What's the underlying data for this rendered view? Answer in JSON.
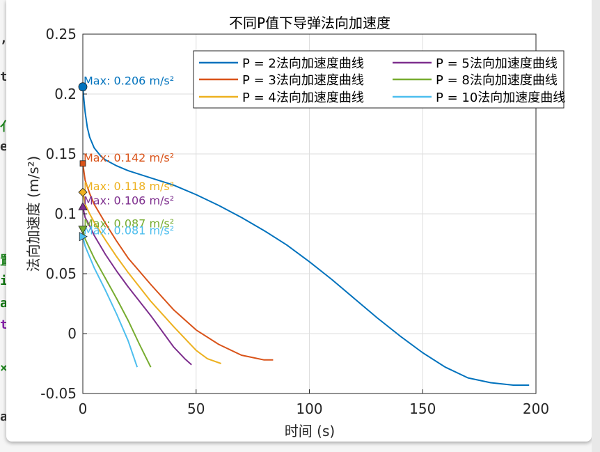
{
  "background_fragments": [
    ",",
    "t",
    "亻",
    "e",
    "置",
    "i",
    "a",
    "t",
    "×",
    "a"
  ],
  "chart_data": {
    "type": "line",
    "title": "不同P值下导弹法向加速度",
    "xlabel": "时间 (s)",
    "ylabel": "法向加速度 (m/s²)",
    "xlim": [
      0,
      200
    ],
    "ylim": [
      -0.05,
      0.25
    ],
    "x_ticks": [
      "0",
      "50",
      "100",
      "150",
      "200"
    ],
    "y_ticks": [
      "-0.05",
      "0",
      "0.05",
      "0.1",
      "0.15",
      "0.2",
      "0.25"
    ],
    "grid": true,
    "legend_position": "top-right",
    "legend_columns": 2,
    "series": [
      {
        "name": "P = 2法向加速度曲线",
        "color": "#0072BD",
        "marker": "circle",
        "max_label": "Max: 0.206 m/s²",
        "max_value": 0.206,
        "x": [
          0,
          0.5,
          1,
          2,
          3,
          5,
          8,
          10,
          15,
          20,
          30,
          40,
          50,
          60,
          70,
          80,
          90,
          100,
          110,
          120,
          130,
          140,
          150,
          160,
          170,
          180,
          190,
          197
        ],
        "y": [
          0.206,
          0.195,
          0.185,
          0.172,
          0.164,
          0.155,
          0.148,
          0.145,
          0.14,
          0.136,
          0.13,
          0.124,
          0.116,
          0.107,
          0.097,
          0.086,
          0.074,
          0.06,
          0.045,
          0.029,
          0.013,
          -0.002,
          -0.016,
          -0.028,
          -0.037,
          -0.041,
          -0.043,
          -0.043
        ]
      },
      {
        "name": "P = 3法向加速度曲线",
        "color": "#D95319",
        "marker": "square",
        "max_label": "Max: 0.142 m/s²",
        "max_value": 0.142,
        "x": [
          0,
          1,
          3,
          5,
          10,
          15,
          20,
          30,
          40,
          50,
          60,
          70,
          75,
          80,
          84
        ],
        "y": [
          0.142,
          0.128,
          0.117,
          0.108,
          0.092,
          0.077,
          0.063,
          0.041,
          0.02,
          0.003,
          -0.009,
          -0.018,
          -0.02,
          -0.022,
          -0.022
        ]
      },
      {
        "name": "P = 4法向加速度曲线",
        "color": "#EDB120",
        "marker": "diamond",
        "max_label": "Max: 0.118 m/s²",
        "max_value": 0.118,
        "x": [
          0,
          1,
          3,
          5,
          10,
          15,
          20,
          30,
          40,
          50,
          55,
          61
        ],
        "y": [
          0.118,
          0.108,
          0.1,
          0.093,
          0.078,
          0.064,
          0.051,
          0.027,
          0.006,
          -0.014,
          -0.021,
          -0.025
        ]
      },
      {
        "name": "P = 5法向加速度曲线",
        "color": "#7E2F8E",
        "marker": "triangle-up",
        "max_label": "Max: 0.106 m/s²",
        "max_value": 0.106,
        "x": [
          0,
          1,
          3,
          5,
          10,
          15,
          20,
          30,
          40,
          45,
          48
        ],
        "y": [
          0.106,
          0.097,
          0.09,
          0.082,
          0.066,
          0.052,
          0.039,
          0.015,
          -0.011,
          -0.021,
          -0.026
        ]
      },
      {
        "name": "P = 8法向加速度曲线",
        "color": "#77AC30",
        "marker": "triangle-down",
        "max_label": "Max: 0.087 m/s²",
        "max_value": 0.087,
        "x": [
          0,
          1,
          3,
          5,
          10,
          15,
          20,
          25,
          30
        ],
        "y": [
          0.087,
          0.079,
          0.071,
          0.063,
          0.046,
          0.029,
          0.011,
          -0.009,
          -0.028
        ]
      },
      {
        "name": "P = 10法向加速度曲线",
        "color": "#4DBEEE",
        "marker": "triangle-right",
        "max_label": "Max: 0.081 m/s²",
        "max_value": 0.081,
        "x": [
          0,
          1,
          3,
          5,
          10,
          15,
          20,
          24
        ],
        "y": [
          0.081,
          0.073,
          0.064,
          0.055,
          0.036,
          0.016,
          -0.006,
          -0.028
        ]
      }
    ]
  }
}
